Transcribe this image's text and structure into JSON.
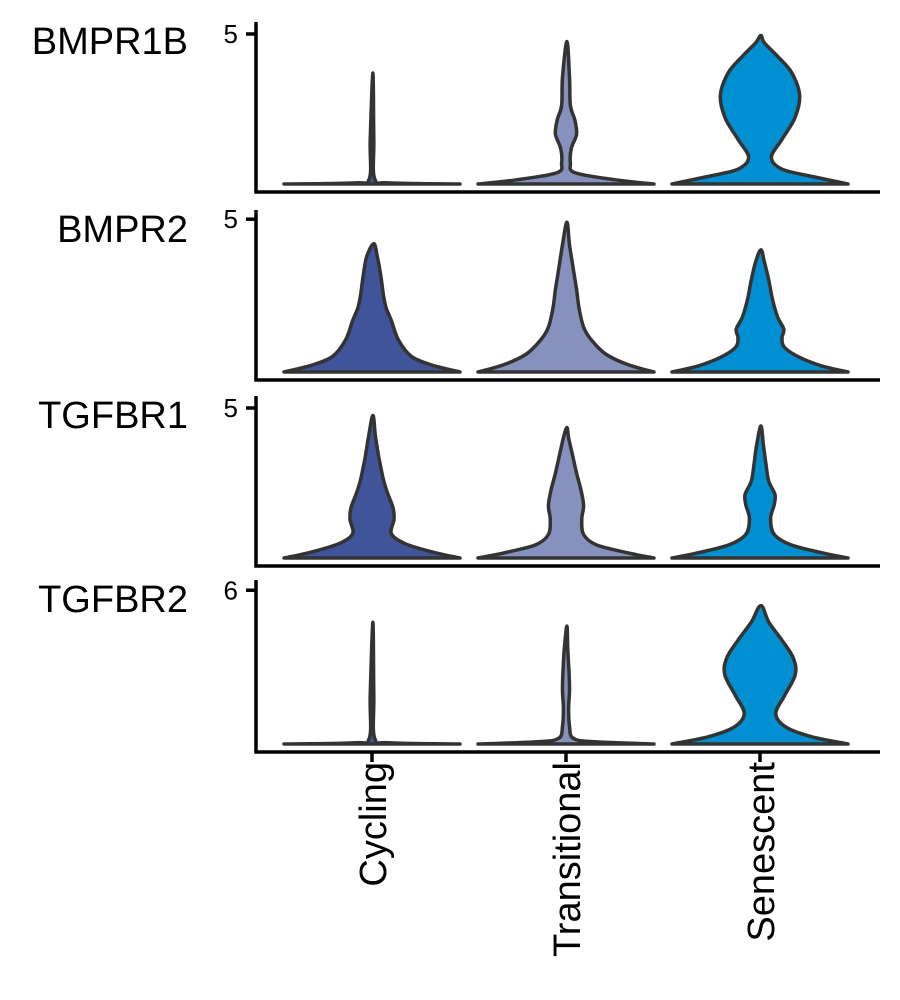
{
  "chart_data": {
    "type": "violin",
    "categories": [
      "Cycling",
      "Transitional",
      "Senescent"
    ],
    "colors": {
      "Cycling": "#3f5499",
      "Transitional": "#8791be",
      "Senescent": "#008fd0"
    },
    "outline_color": "#333333",
    "panels": [
      {
        "gene": "BMPR1B",
        "tick": 5,
        "ymax": 5.4,
        "violins": [
          {
            "category": "Cycling",
            "max": 3.7,
            "profile": [
              [
                0,
                1.0
              ],
              [
                0.01,
                0.2
              ],
              [
                0.05,
                0.03
              ],
              [
                0.4,
                0.02
              ],
              [
                1.0,
                0.01
              ]
            ]
          },
          {
            "category": "Transitional",
            "max": 4.75,
            "profile": [
              [
                0,
                1.0
              ],
              [
                0.03,
                0.55
              ],
              [
                0.08,
                0.1
              ],
              [
                0.15,
                0.05
              ],
              [
                0.25,
                0.06
              ],
              [
                0.35,
                0.12
              ],
              [
                0.45,
                0.1
              ],
              [
                0.55,
                0.05
              ],
              [
                0.75,
                0.04
              ],
              [
                1.0,
                0.01
              ]
            ]
          },
          {
            "category": "Senescent",
            "max": 4.95,
            "profile": [
              [
                0,
                1.0
              ],
              [
                0.05,
                0.6
              ],
              [
                0.1,
                0.25
              ],
              [
                0.18,
                0.13
              ],
              [
                0.3,
                0.25
              ],
              [
                0.45,
                0.4
              ],
              [
                0.6,
                0.45
              ],
              [
                0.75,
                0.36
              ],
              [
                0.86,
                0.2
              ],
              [
                0.95,
                0.05
              ],
              [
                1.0,
                0.01
              ]
            ]
          }
        ]
      },
      {
        "gene": "BMPR2",
        "tick": 5,
        "ymax": 5.3,
        "violins": [
          {
            "category": "Cycling",
            "max": 4.2,
            "profile": [
              [
                0,
                1.0
              ],
              [
                0.05,
                0.7
              ],
              [
                0.12,
                0.45
              ],
              [
                0.25,
                0.3
              ],
              [
                0.4,
                0.22
              ],
              [
                0.5,
                0.16
              ],
              [
                0.6,
                0.13
              ],
              [
                0.75,
                0.1
              ],
              [
                0.9,
                0.06
              ],
              [
                1.0,
                0.02
              ]
            ]
          },
          {
            "category": "Transitional",
            "max": 4.9,
            "profile": [
              [
                0,
                1.0
              ],
              [
                0.05,
                0.7
              ],
              [
                0.12,
                0.45
              ],
              [
                0.22,
                0.28
              ],
              [
                0.3,
                0.2
              ],
              [
                0.42,
                0.15
              ],
              [
                0.55,
                0.12
              ],
              [
                0.7,
                0.08
              ],
              [
                0.85,
                0.04
              ],
              [
                1.0,
                0.01
              ]
            ]
          },
          {
            "category": "Senescent",
            "max": 4.0,
            "profile": [
              [
                0,
                1.0
              ],
              [
                0.05,
                0.7
              ],
              [
                0.12,
                0.45
              ],
              [
                0.2,
                0.28
              ],
              [
                0.28,
                0.25
              ],
              [
                0.35,
                0.27
              ],
              [
                0.45,
                0.2
              ],
              [
                0.6,
                0.14
              ],
              [
                0.75,
                0.1
              ],
              [
                0.9,
                0.05
              ],
              [
                1.0,
                0.01
              ]
            ]
          }
        ]
      },
      {
        "gene": "TGFBR1",
        "tick": 5,
        "ymax": 5.4,
        "violins": [
          {
            "category": "Cycling",
            "max": 4.75,
            "profile": [
              [
                0,
                1.0
              ],
              [
                0.04,
                0.7
              ],
              [
                0.1,
                0.38
              ],
              [
                0.17,
                0.22
              ],
              [
                0.27,
                0.25
              ],
              [
                0.35,
                0.24
              ],
              [
                0.45,
                0.18
              ],
              [
                0.55,
                0.13
              ],
              [
                0.7,
                0.08
              ],
              [
                0.85,
                0.04
              ],
              [
                1.0,
                0.01
              ]
            ]
          },
          {
            "category": "Transitional",
            "max": 4.35,
            "profile": [
              [
                0,
                1.0
              ],
              [
                0.04,
                0.7
              ],
              [
                0.1,
                0.35
              ],
              [
                0.18,
                0.2
              ],
              [
                0.3,
                0.18
              ],
              [
                0.4,
                0.2
              ],
              [
                0.52,
                0.17
              ],
              [
                0.65,
                0.12
              ],
              [
                0.8,
                0.07
              ],
              [
                0.92,
                0.03
              ],
              [
                1.0,
                0.01
              ]
            ]
          },
          {
            "category": "Senescent",
            "max": 4.4,
            "profile": [
              [
                0,
                1.0
              ],
              [
                0.04,
                0.7
              ],
              [
                0.1,
                0.35
              ],
              [
                0.18,
                0.16
              ],
              [
                0.3,
                0.12
              ],
              [
                0.4,
                0.16
              ],
              [
                0.48,
                0.17
              ],
              [
                0.58,
                0.1
              ],
              [
                0.7,
                0.07
              ],
              [
                0.85,
                0.04
              ],
              [
                1.0,
                0.01
              ]
            ]
          }
        ]
      },
      {
        "gene": "TGFBR2",
        "tick": 6,
        "ymax": 6.4,
        "violins": [
          {
            "category": "Cycling",
            "max": 4.75,
            "profile": [
              [
                0,
                1.0
              ],
              [
                0.01,
                0.2
              ],
              [
                0.05,
                0.03
              ],
              [
                0.4,
                0.02
              ],
              [
                1.0,
                0.01
              ]
            ]
          },
          {
            "category": "Transitional",
            "max": 4.6,
            "profile": [
              [
                0,
                1.0
              ],
              [
                0.02,
                0.3
              ],
              [
                0.05,
                0.08
              ],
              [
                0.15,
                0.04
              ],
              [
                0.3,
                0.03
              ],
              [
                0.45,
                0.04
              ],
              [
                0.6,
                0.035
              ],
              [
                0.8,
                0.02
              ],
              [
                1.0,
                0.01
              ]
            ]
          },
          {
            "category": "Senescent",
            "max": 5.4,
            "profile": [
              [
                0,
                1.0
              ],
              [
                0.05,
                0.6
              ],
              [
                0.12,
                0.3
              ],
              [
                0.22,
                0.18
              ],
              [
                0.35,
                0.28
              ],
              [
                0.5,
                0.4
              ],
              [
                0.62,
                0.38
              ],
              [
                0.75,
                0.25
              ],
              [
                0.88,
                0.1
              ],
              [
                1.0,
                0.01
              ]
            ]
          }
        ]
      }
    ]
  }
}
